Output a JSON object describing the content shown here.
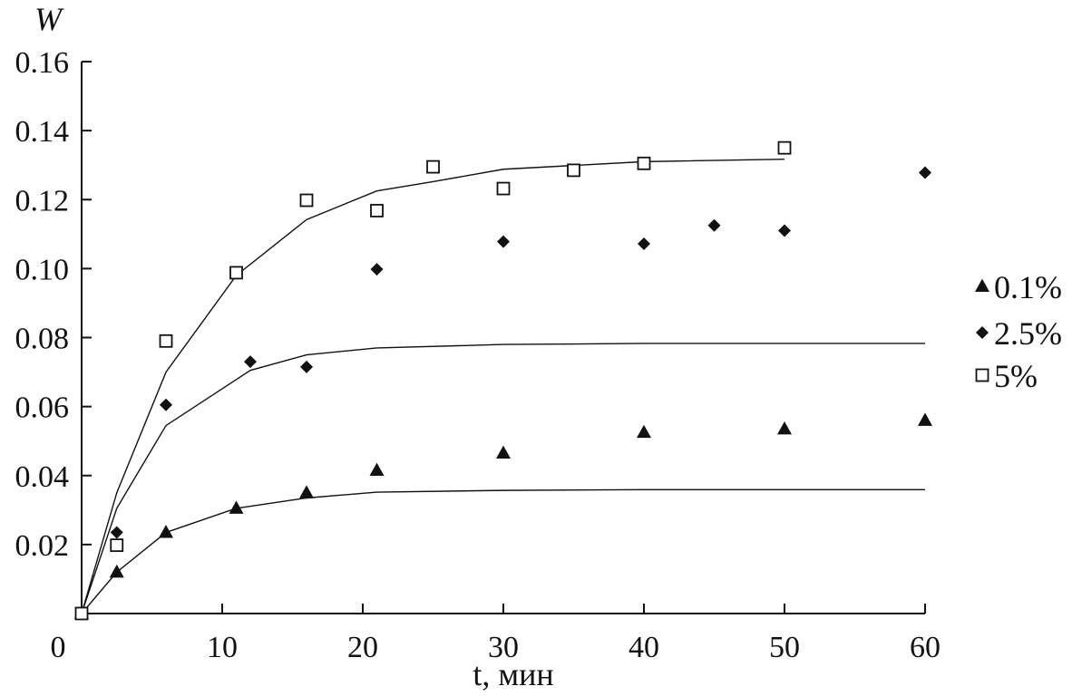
{
  "chart_data": {
    "type": "scatter",
    "xlabel": "t, мин",
    "ylabel": "W",
    "xlim": [
      0,
      60
    ],
    "ylim": [
      0,
      0.16
    ],
    "x_ticks": [
      0,
      10,
      20,
      30,
      40,
      50,
      60
    ],
    "x_tick_labels": [
      "0",
      "10",
      "20",
      "30",
      "40",
      "50",
      "60"
    ],
    "y_ticks": [
      0.02,
      0.04,
      0.06,
      0.08,
      0.1,
      0.12,
      0.14,
      0.16
    ],
    "y_tick_labels": [
      "0.02",
      "0.04",
      "0.06",
      "0.08",
      "0.10",
      "0.12",
      "0.14",
      "0.16"
    ],
    "grid": false,
    "legend_position": "right",
    "series": [
      {
        "name": "0.1%",
        "marker": "triangle",
        "color": "#111111",
        "points": [
          [
            0,
            0
          ],
          [
            2.5,
            0.012
          ],
          [
            6,
            0.0235
          ],
          [
            11,
            0.0305
          ],
          [
            16,
            0.035
          ],
          [
            21,
            0.0415
          ],
          [
            30,
            0.0465
          ],
          [
            40,
            0.0525
          ],
          [
            50,
            0.0535
          ],
          [
            60,
            0.056
          ]
        ],
        "fit": [
          [
            0,
            0
          ],
          [
            2.5,
            0.012
          ],
          [
            6,
            0.0235
          ],
          [
            11,
            0.0305
          ],
          [
            16,
            0.0335
          ],
          [
            21,
            0.0352
          ],
          [
            30,
            0.0357
          ],
          [
            40,
            0.0359
          ],
          [
            50,
            0.0359
          ],
          [
            60,
            0.0359
          ]
        ]
      },
      {
        "name": "2.5%",
        "marker": "diamond",
        "color": "#111111",
        "points": [
          [
            0,
            0
          ],
          [
            2.5,
            0.0235
          ],
          [
            6,
            0.0605
          ],
          [
            12,
            0.073
          ],
          [
            16,
            0.0715
          ],
          [
            21,
            0.0998
          ],
          [
            30,
            0.1078
          ],
          [
            40,
            0.1072
          ],
          [
            45,
            0.1125
          ],
          [
            50,
            0.111
          ],
          [
            60,
            0.1278
          ]
        ],
        "fit": [
          [
            0,
            0
          ],
          [
            2.5,
            0.0305
          ],
          [
            6,
            0.0545
          ],
          [
            12,
            0.0705
          ],
          [
            16,
            0.075
          ],
          [
            21,
            0.077
          ],
          [
            30,
            0.078
          ],
          [
            40,
            0.0783
          ],
          [
            50,
            0.0783
          ],
          [
            60,
            0.0783
          ]
        ]
      },
      {
        "name": "5%",
        "marker": "square-open",
        "color": "#111111",
        "points": [
          [
            0,
            0
          ],
          [
            2.5,
            0.0198
          ],
          [
            6,
            0.079
          ],
          [
            11,
            0.0988
          ],
          [
            16,
            0.1198
          ],
          [
            21,
            0.1168
          ],
          [
            25,
            0.1295
          ],
          [
            30,
            0.1232
          ],
          [
            35,
            0.1285
          ],
          [
            40,
            0.1305
          ],
          [
            50,
            0.135
          ]
        ],
        "fit": [
          [
            0,
            0
          ],
          [
            2.5,
            0.035
          ],
          [
            6,
            0.07
          ],
          [
            11,
            0.098
          ],
          [
            16,
            0.1142
          ],
          [
            21,
            0.1225
          ],
          [
            25,
            0.1252
          ],
          [
            30,
            0.1288
          ],
          [
            40,
            0.131
          ],
          [
            50,
            0.1317
          ]
        ]
      }
    ]
  }
}
